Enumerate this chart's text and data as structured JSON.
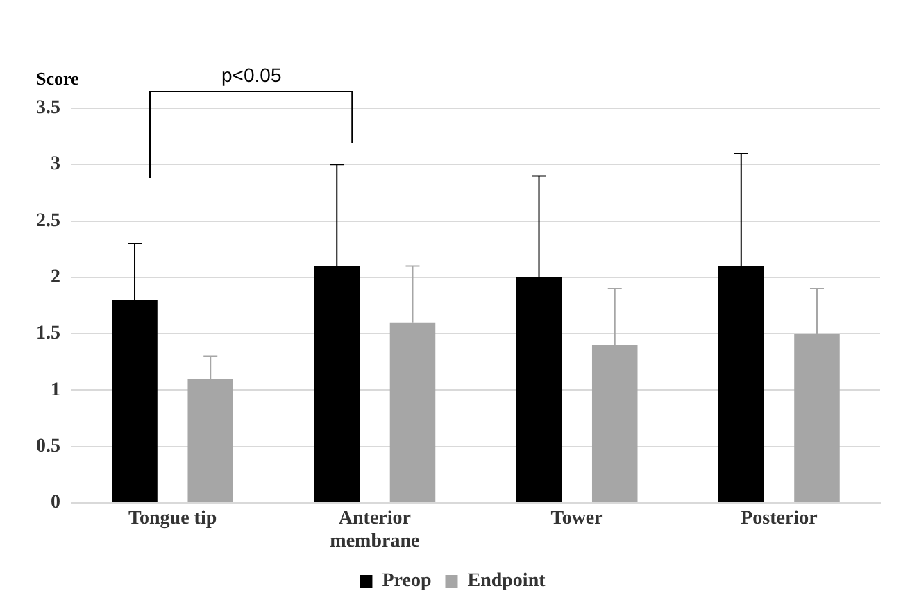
{
  "chart_data": {
    "type": "bar",
    "ylabel": "Score",
    "categories": [
      "Tongue tip",
      "Anterior membrane",
      "Tower",
      "Posterior"
    ],
    "series": [
      {
        "name": "Preop",
        "color": "#000000",
        "values": [
          1.8,
          2.1,
          2.0,
          2.1
        ],
        "errors": [
          [
            1.8,
            2.3
          ],
          [
            2.1,
            3.0
          ],
          [
            2.0,
            2.9
          ],
          [
            2.1,
            3.1
          ]
        ]
      },
      {
        "name": "Endpoint",
        "color": "#a6a6a6",
        "values": [
          1.1,
          1.6,
          1.4,
          1.5
        ],
        "errors": [
          [
            1.1,
            1.3
          ],
          [
            1.6,
            2.1
          ],
          [
            1.4,
            1.9
          ],
          [
            1.5,
            1.9
          ]
        ]
      }
    ],
    "ylim": [
      0,
      3.5
    ],
    "yticks": [
      0,
      0.5,
      1,
      1.5,
      2,
      2.5,
      3,
      3.5
    ],
    "grid": "y",
    "legend": "bottom",
    "annotations": [
      "p<0.05"
    ]
  }
}
